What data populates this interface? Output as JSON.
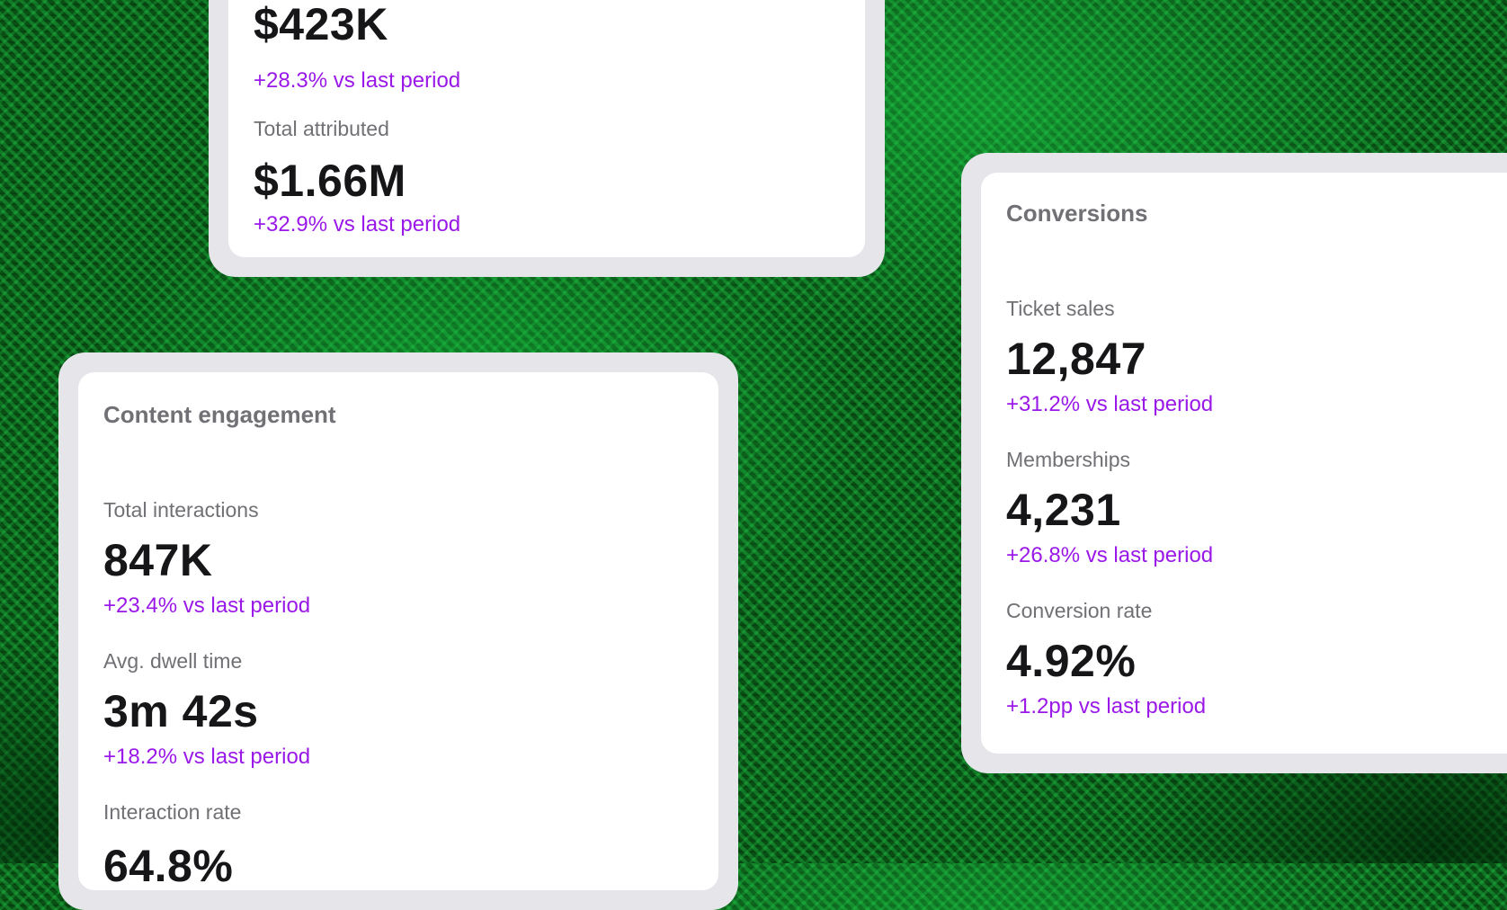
{
  "revenue_card": {
    "metrics": [
      {
        "label": "",
        "value": "$423K",
        "change": "+28.3% vs last period"
      },
      {
        "label": "Total attributed",
        "value": "$1.66M",
        "change": "+32.9% vs last period"
      }
    ]
  },
  "content_engagement": {
    "title": "Content engagement",
    "metrics": [
      {
        "label": "Total interactions",
        "value": "847K",
        "change": "+23.4% vs last period"
      },
      {
        "label": "Avg. dwell time",
        "value": "3m 42s",
        "change": "+18.2% vs last period"
      },
      {
        "label": "Interaction rate",
        "value": "64.8%",
        "change": ""
      }
    ]
  },
  "conversions": {
    "title": "Conversions",
    "metrics": [
      {
        "label": "Ticket sales",
        "value": "12,847",
        "change": "+31.2% vs last period"
      },
      {
        "label": "Memberships",
        "value": "4,231",
        "change": "+26.8% vs last period"
      },
      {
        "label": "Conversion rate",
        "value": "4.92%",
        "change": "+1.2pp vs last period"
      }
    ]
  },
  "colors": {
    "positive_change": "#9a18e8",
    "background": "#0a4f14",
    "card_frame": "#e6e6ea"
  }
}
